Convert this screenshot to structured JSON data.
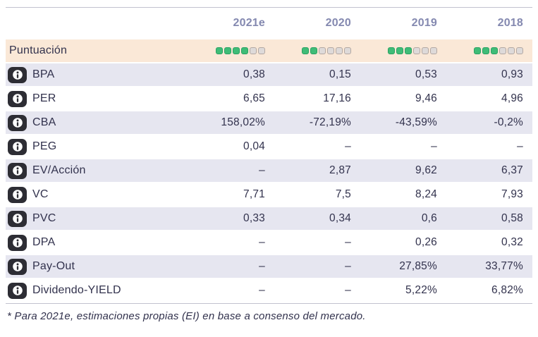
{
  "table": {
    "columns": [
      "2021e",
      "2020",
      "2019",
      "2018"
    ],
    "score_row": {
      "label": "Puntuación",
      "max_dots": 6,
      "scores": [
        4,
        2,
        3,
        3
      ]
    },
    "rows": [
      {
        "label": "BPA",
        "values": [
          "0,38",
          "0,15",
          "0,53",
          "0,93"
        ]
      },
      {
        "label": "PER",
        "values": [
          "6,65",
          "17,16",
          "9,46",
          "4,96"
        ]
      },
      {
        "label": "CBA",
        "values": [
          "158,02%",
          "-72,19%",
          "-43,59%",
          "-0,2%"
        ]
      },
      {
        "label": "PEG",
        "values": [
          "0,04",
          "–",
          "–",
          "–"
        ]
      },
      {
        "label": "EV/Acción",
        "values": [
          "–",
          "2,87",
          "9,62",
          "6,37"
        ]
      },
      {
        "label": "VC",
        "values": [
          "7,71",
          "7,5",
          "8,24",
          "7,93"
        ]
      },
      {
        "label": "PVC",
        "values": [
          "0,33",
          "0,34",
          "0,6",
          "0,58"
        ]
      },
      {
        "label": "DPA",
        "values": [
          "–",
          "–",
          "0,26",
          "0,32"
        ]
      },
      {
        "label": "Pay-Out",
        "values": [
          "–",
          "–",
          "27,85%",
          "33,77%"
        ]
      },
      {
        "label": "Dividendo-YIELD",
        "values": [
          "–",
          "–",
          "5,22%",
          "6,82%"
        ]
      }
    ],
    "footnote": "* Para 2021e, estimaciones propias (EI) en base a consenso del mercado.",
    "icons": {
      "row_icon": "info-icon"
    },
    "colors": {
      "accent_green": "#3fbc77",
      "dot_empty": "#dedad9",
      "score_row_bg": "#fae8d7",
      "stripe_bg": "#e6e6f0",
      "header_text": "#8489b0",
      "body_text": "#32324d"
    }
  }
}
